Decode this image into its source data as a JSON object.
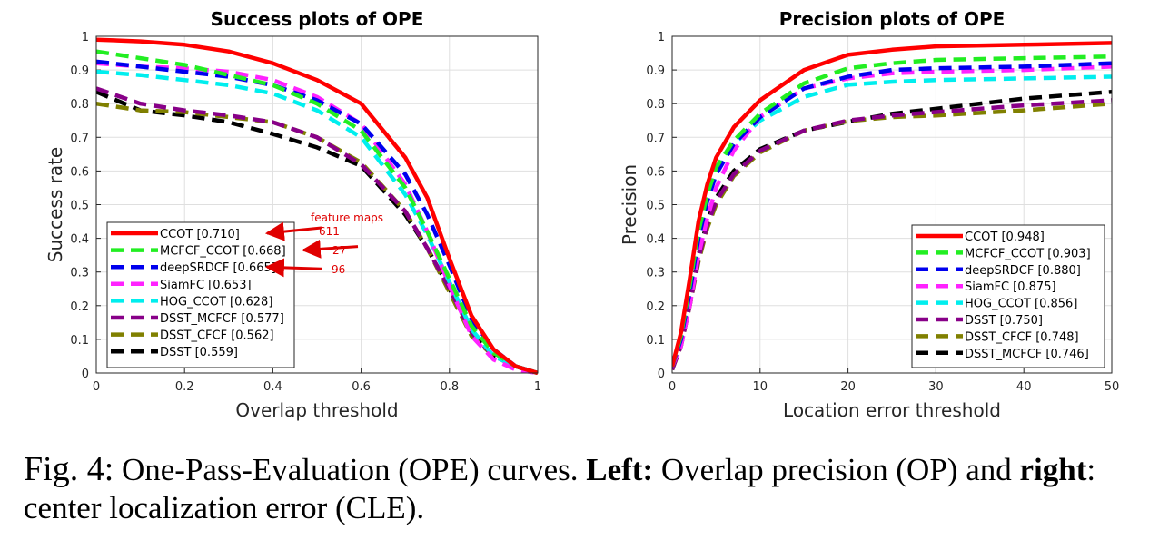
{
  "chart_data": [
    {
      "type": "line",
      "title": "Success plots of OPE",
      "xlabel": "Overlap threshold",
      "ylabel": "Success rate",
      "xlim": [
        0,
        1
      ],
      "ylim": [
        0,
        1
      ],
      "xticks": [
        "0",
        "0.2",
        "0.4",
        "0.6",
        "0.8",
        "1"
      ],
      "yticks": [
        "0",
        "0.1",
        "0.2",
        "0.3",
        "0.4",
        "0.5",
        "0.6",
        "0.7",
        "0.8",
        "0.9",
        "1"
      ],
      "grid": true,
      "legend_position": "bottom-left",
      "series": [
        {
          "name": "CCOT [0.710]",
          "color": "#ff0000",
          "style": "solid",
          "x": [
            0,
            0.1,
            0.2,
            0.3,
            0.4,
            0.5,
            0.6,
            0.7,
            0.75,
            0.8,
            0.85,
            0.9,
            0.95,
            1.0
          ],
          "values": [
            0.99,
            0.985,
            0.975,
            0.955,
            0.92,
            0.87,
            0.8,
            0.64,
            0.52,
            0.34,
            0.17,
            0.07,
            0.02,
            0.0
          ]
        },
        {
          "name": "MCFCF_CCOT [0.668]",
          "color": "#22ee22",
          "style": "dashed",
          "x": [
            0,
            0.1,
            0.2,
            0.3,
            0.4,
            0.5,
            0.6,
            0.7,
            0.75,
            0.8,
            0.85,
            0.9,
            0.95,
            1.0
          ],
          "values": [
            0.955,
            0.935,
            0.915,
            0.885,
            0.855,
            0.8,
            0.72,
            0.55,
            0.42,
            0.28,
            0.14,
            0.06,
            0.02,
            0.0
          ]
        },
        {
          "name": "deepSRDCF [0.665]",
          "color": "#0000ee",
          "style": "dashed",
          "x": [
            0,
            0.1,
            0.2,
            0.3,
            0.4,
            0.5,
            0.6,
            0.7,
            0.75,
            0.8,
            0.85,
            0.9,
            0.95,
            1.0
          ],
          "values": [
            0.925,
            0.91,
            0.895,
            0.88,
            0.855,
            0.81,
            0.74,
            0.59,
            0.47,
            0.32,
            0.16,
            0.07,
            0.02,
            0.0
          ]
        },
        {
          "name": "SiamFC [0.653]",
          "color": "#ff22ff",
          "style": "dashed",
          "x": [
            0,
            0.1,
            0.2,
            0.3,
            0.4,
            0.5,
            0.6,
            0.7,
            0.75,
            0.8,
            0.85,
            0.9,
            0.95,
            1.0
          ],
          "values": [
            0.92,
            0.91,
            0.905,
            0.895,
            0.87,
            0.82,
            0.74,
            0.56,
            0.42,
            0.26,
            0.11,
            0.04,
            0.01,
            0.0
          ]
        },
        {
          "name": "HOG_CCOT [0.628]",
          "color": "#00eeee",
          "style": "dashed",
          "x": [
            0,
            0.1,
            0.2,
            0.3,
            0.4,
            0.5,
            0.6,
            0.7,
            0.75,
            0.8,
            0.85,
            0.9,
            0.95,
            1.0
          ],
          "values": [
            0.895,
            0.885,
            0.87,
            0.855,
            0.83,
            0.78,
            0.7,
            0.53,
            0.41,
            0.27,
            0.13,
            0.05,
            0.02,
            0.0
          ]
        },
        {
          "name": "DSST_MCFCF [0.577]",
          "color": "#880088",
          "style": "dashed",
          "x": [
            0,
            0.1,
            0.2,
            0.3,
            0.4,
            0.5,
            0.6,
            0.7,
            0.75,
            0.8,
            0.85,
            0.9,
            0.95,
            1.0
          ],
          "values": [
            0.845,
            0.8,
            0.78,
            0.765,
            0.745,
            0.7,
            0.62,
            0.48,
            0.37,
            0.25,
            0.12,
            0.05,
            0.02,
            0.0
          ]
        },
        {
          "name": "DSST_CFCF [0.562]",
          "color": "#808000",
          "style": "dashed",
          "x": [
            0,
            0.1,
            0.2,
            0.3,
            0.4,
            0.5,
            0.6,
            0.7,
            0.75,
            0.8,
            0.85,
            0.9,
            0.95,
            1.0
          ],
          "values": [
            0.8,
            0.78,
            0.775,
            0.76,
            0.745,
            0.7,
            0.625,
            0.48,
            0.37,
            0.24,
            0.11,
            0.05,
            0.02,
            0.0
          ]
        },
        {
          "name": "DSST [0.559]",
          "color": "#000000",
          "style": "dashed",
          "x": [
            0,
            0.1,
            0.2,
            0.3,
            0.4,
            0.5,
            0.6,
            0.7,
            0.75,
            0.8,
            0.85,
            0.9,
            0.95,
            1.0
          ],
          "values": [
            0.835,
            0.78,
            0.765,
            0.745,
            0.71,
            0.67,
            0.615,
            0.47,
            0.37,
            0.25,
            0.12,
            0.05,
            0.02,
            0.0
          ]
        }
      ],
      "annotations": [
        {
          "text": "feature maps",
          "target": "title"
        },
        {
          "text": "611",
          "target": "CCOT [0.710]"
        },
        {
          "text": "27",
          "target": "MCFCF_CCOT [0.668]"
        },
        {
          "text": "96",
          "target": "deepSRDCF [0.665]"
        }
      ]
    },
    {
      "type": "line",
      "title": "Precision plots of OPE",
      "xlabel": "Location error threshold",
      "ylabel": "Precision",
      "xlim": [
        0,
        50
      ],
      "ylim": [
        0,
        1
      ],
      "xticks": [
        "0",
        "10",
        "20",
        "30",
        "40",
        "50"
      ],
      "yticks": [
        "0",
        "0.1",
        "0.2",
        "0.3",
        "0.4",
        "0.5",
        "0.6",
        "0.7",
        "0.8",
        "0.9",
        "1"
      ],
      "grid": true,
      "legend_position": "bottom-right",
      "series": [
        {
          "name": "CCOT [0.948]",
          "color": "#ff0000",
          "style": "solid",
          "x": [
            0,
            1,
            2,
            3,
            4,
            5,
            7,
            10,
            15,
            20,
            25,
            30,
            40,
            50
          ],
          "values": [
            0.02,
            0.12,
            0.28,
            0.45,
            0.56,
            0.64,
            0.73,
            0.81,
            0.9,
            0.945,
            0.96,
            0.97,
            0.975,
            0.98
          ]
        },
        {
          "name": "MCFCF_CCOT [0.903]",
          "color": "#22ee22",
          "style": "dashed",
          "x": [
            0,
            1,
            2,
            3,
            4,
            5,
            7,
            10,
            15,
            20,
            25,
            30,
            40,
            50
          ],
          "values": [
            0.02,
            0.11,
            0.26,
            0.42,
            0.53,
            0.61,
            0.69,
            0.77,
            0.86,
            0.905,
            0.92,
            0.93,
            0.935,
            0.94
          ]
        },
        {
          "name": "deepSRDCF [0.880]",
          "color": "#0000ee",
          "style": "dashed",
          "x": [
            0,
            1,
            2,
            3,
            4,
            5,
            7,
            10,
            15,
            20,
            25,
            30,
            40,
            50
          ],
          "values": [
            0.02,
            0.1,
            0.24,
            0.4,
            0.51,
            0.59,
            0.68,
            0.76,
            0.845,
            0.88,
            0.9,
            0.905,
            0.91,
            0.92
          ]
        },
        {
          "name": "SiamFC [0.875]",
          "color": "#ff22ff",
          "style": "dashed",
          "x": [
            0,
            1,
            2,
            3,
            4,
            5,
            7,
            10,
            15,
            20,
            25,
            30,
            40,
            50
          ],
          "values": [
            0.02,
            0.08,
            0.2,
            0.35,
            0.46,
            0.55,
            0.66,
            0.76,
            0.845,
            0.875,
            0.89,
            0.895,
            0.9,
            0.91
          ]
        },
        {
          "name": "HOG_CCOT [0.856]",
          "color": "#00eeee",
          "style": "dashed",
          "x": [
            0,
            1,
            2,
            3,
            4,
            5,
            7,
            10,
            15,
            20,
            25,
            30,
            40,
            50
          ],
          "values": [
            0.02,
            0.1,
            0.25,
            0.41,
            0.52,
            0.6,
            0.68,
            0.75,
            0.82,
            0.856,
            0.865,
            0.87,
            0.875,
            0.88
          ]
        },
        {
          "name": "DSST [0.750]",
          "color": "#880088",
          "style": "dashed",
          "x": [
            0,
            1,
            2,
            3,
            4,
            5,
            7,
            10,
            15,
            20,
            25,
            30,
            40,
            50
          ],
          "values": [
            0.01,
            0.08,
            0.2,
            0.34,
            0.44,
            0.51,
            0.59,
            0.66,
            0.72,
            0.75,
            0.765,
            0.775,
            0.795,
            0.81
          ]
        },
        {
          "name": "DSST_CFCF [0.748]",
          "color": "#808000",
          "style": "dashed",
          "x": [
            0,
            1,
            2,
            3,
            4,
            5,
            7,
            10,
            15,
            20,
            25,
            30,
            40,
            50
          ],
          "values": [
            0.01,
            0.08,
            0.2,
            0.33,
            0.43,
            0.5,
            0.585,
            0.655,
            0.72,
            0.748,
            0.76,
            0.765,
            0.78,
            0.8
          ]
        },
        {
          "name": "DSST_MCFCF [0.746]",
          "color": "#000000",
          "style": "dashed",
          "x": [
            0,
            1,
            2,
            3,
            4,
            5,
            7,
            10,
            15,
            20,
            25,
            30,
            40,
            50
          ],
          "values": [
            0.01,
            0.09,
            0.21,
            0.35,
            0.45,
            0.52,
            0.6,
            0.665,
            0.72,
            0.746,
            0.77,
            0.785,
            0.815,
            0.835
          ]
        }
      ]
    }
  ],
  "caption": {
    "fig_label": "Fig. 4:",
    "part1": " One-Pass-Evaluation (OPE) curves. ",
    "left_bold": "Left:",
    "part2": " Overlap precision (OP) and ",
    "right_bold": "right",
    "part3": ": center localization error (CLE)."
  }
}
